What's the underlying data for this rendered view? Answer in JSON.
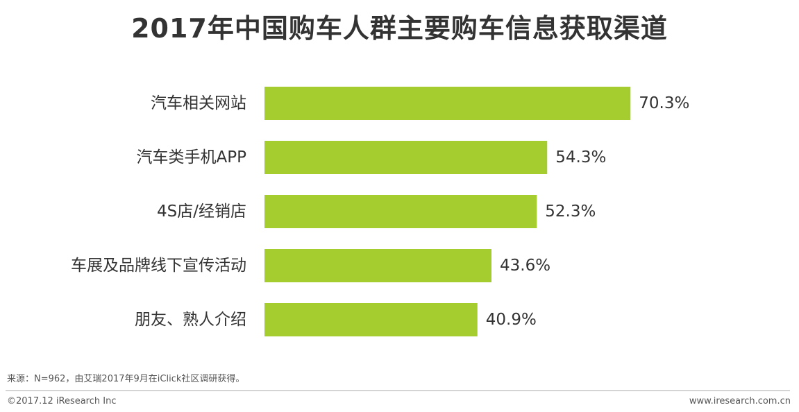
{
  "chart_data": {
    "type": "bar",
    "orientation": "horizontal",
    "title": "2017年中国购车人群主要购车信息获取渠道",
    "categories": [
      "汽车相关网站",
      "汽车类手机APP",
      "4S店/经销店",
      "车展及品牌线下宣传活动",
      "朋友、熟人介绍"
    ],
    "values": [
      70.3,
      54.3,
      52.3,
      43.6,
      40.9
    ],
    "value_labels": [
      "70.3%",
      "54.3%",
      "52.3%",
      "43.6%",
      "40.9%"
    ],
    "unit": "%",
    "xlim": [
      0,
      100
    ],
    "grid": false,
    "legend": "none",
    "bar_color": "#a6cd30"
  },
  "footer": {
    "source": "来源：N=962，由艾瑞2017年9月在iClick社区调研获得。",
    "copyright": "©2017.12 iResearch Inc",
    "website": "www.iresearch.com.cn"
  }
}
